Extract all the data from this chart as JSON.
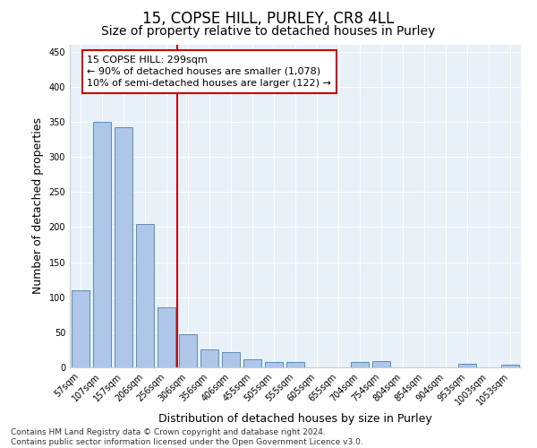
{
  "title": "15, COPSE HILL, PURLEY, CR8 4LL",
  "subtitle": "Size of property relative to detached houses in Purley",
  "xlabel": "Distribution of detached houses by size in Purley",
  "ylabel": "Number of detached properties",
  "categories": [
    "57sqm",
    "107sqm",
    "157sqm",
    "206sqm",
    "256sqm",
    "306sqm",
    "356sqm",
    "406sqm",
    "455sqm",
    "505sqm",
    "555sqm",
    "605sqm",
    "655sqm",
    "704sqm",
    "754sqm",
    "804sqm",
    "854sqm",
    "904sqm",
    "953sqm",
    "1003sqm",
    "1053sqm"
  ],
  "values": [
    110,
    350,
    343,
    204,
    85,
    47,
    25,
    22,
    12,
    8,
    8,
    0,
    0,
    8,
    9,
    0,
    0,
    0,
    5,
    0,
    4
  ],
  "bar_color": "#aec6e8",
  "bar_edge_color": "#5b8db8",
  "vline_index": 5,
  "vline_color": "#cc0000",
  "annotation_text": "15 COPSE HILL: 299sqm\n← 90% of detached houses are smaller (1,078)\n10% of semi-detached houses are larger (122) →",
  "annotation_box_color": "#ffffff",
  "annotation_box_edge_color": "#cc0000",
  "ylim": [
    0,
    460
  ],
  "yticks": [
    0,
    50,
    100,
    150,
    200,
    250,
    300,
    350,
    400,
    450
  ],
  "plot_background_color": "#e8f0f8",
  "footer_text": "Contains HM Land Registry data © Crown copyright and database right 2024.\nContains public sector information licensed under the Open Government Licence v3.0.",
  "title_fontsize": 12,
  "subtitle_fontsize": 10,
  "xlabel_fontsize": 9,
  "ylabel_fontsize": 9,
  "tick_fontsize": 7,
  "footer_fontsize": 6.5,
  "annotation_fontsize": 8
}
